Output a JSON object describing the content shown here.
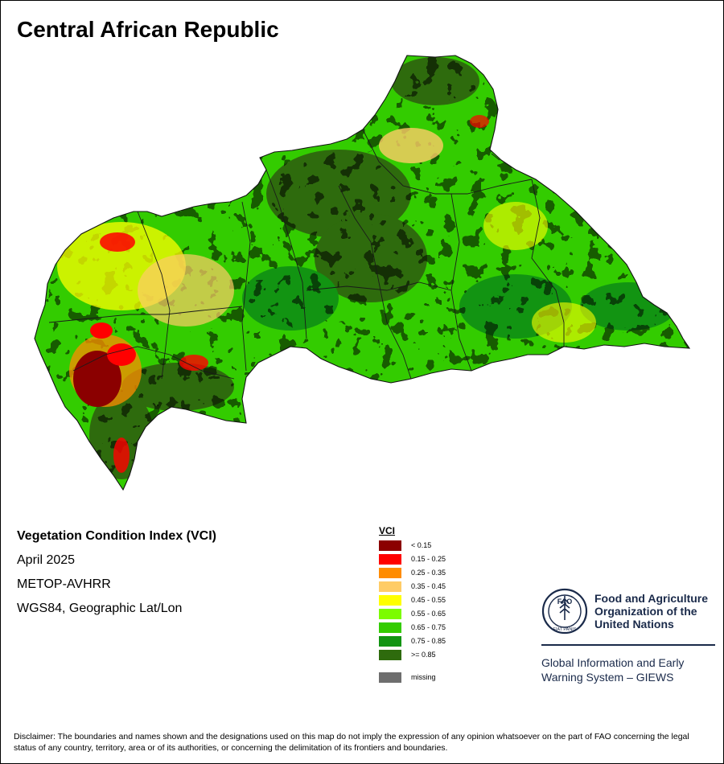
{
  "title": "Central African Republic",
  "info": {
    "index_name": "Vegetation Condition Index (VCI)",
    "date": "April 2025",
    "sensor": "METOP-AVHRR",
    "projection": "WGS84, Geographic Lat/Lon"
  },
  "legend": {
    "title": "VCI",
    "classes": [
      {
        "label": "< 0.15",
        "color": "#8b0000"
      },
      {
        "label": "0.15 - 0.25",
        "color": "#ff0000"
      },
      {
        "label": "0.25 - 0.35",
        "color": "#ff8c00"
      },
      {
        "label": "0.35 - 0.45",
        "color": "#ffcc66"
      },
      {
        "label": "0.45 - 0.55",
        "color": "#ffff00"
      },
      {
        "label": "0.55 - 0.65",
        "color": "#7cfc00"
      },
      {
        "label": "0.65 - 0.75",
        "color": "#33cc00"
      },
      {
        "label": "0.75 - 0.85",
        "color": "#129412"
      },
      {
        "label": ">= 0.85",
        "color": "#2e6b0d"
      }
    ],
    "missing": {
      "label": "missing",
      "color": "#6e6e6e"
    }
  },
  "organization": {
    "name_lines": [
      "Food and Agriculture",
      "Organization of the",
      "United Nations"
    ],
    "system_lines": [
      "Global Information and Early",
      "Warning System – GIEWS"
    ],
    "emblem_letters": "FAO",
    "emblem_motto": "FIAT PANIS"
  },
  "disclaimer": "Disclaimer: The boundaries and names shown and the designations used on this map do not imply the expression of any opinion whatsoever on the part of FAO concerning the legal status of any country, territory, area or of its authorities, or concerning the delimitation of its frontiers and boundaries."
}
